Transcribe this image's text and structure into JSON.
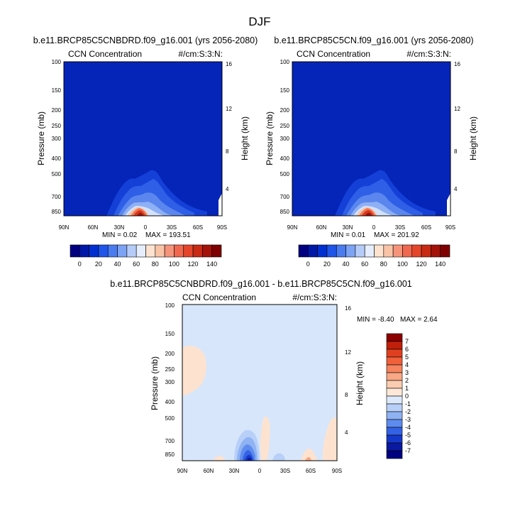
{
  "figure_title": "DJF",
  "chart_data": [
    {
      "type": "heatmap",
      "title": "b.e11.BRCP85C5CNBDRD.f09_g16.001 (yrs 2056-2080)",
      "left_label": "CCN Concentration",
      "right_label": "#/cm:S:3:N:",
      "xlabel": "",
      "ylabel": "Pressure (mb)",
      "y2label": "Height (km)",
      "x_ticks": [
        "90N",
        "60N",
        "30N",
        "0",
        "30S",
        "60S",
        "90S"
      ],
      "y_ticks": [
        "100",
        "150",
        "200",
        "250",
        "300",
        "400",
        "500",
        "700",
        "850"
      ],
      "y2_ticks": [
        "16",
        "12",
        "8",
        "4"
      ],
      "min_text": "MIN =   0.02",
      "max_text": "MAX = 193.51",
      "colorbar_labels": [
        "0",
        "20",
        "40",
        "60",
        "80",
        "100",
        "120",
        "140"
      ],
      "colorbar_colors": [
        "#000080",
        "#0018a8",
        "#0030d0",
        "#1f55e8",
        "#4a7cf0",
        "#7da3f5",
        "#b5ccf8",
        "#e6eefd",
        "#fde3cf",
        "#f9c3a6",
        "#f5947a",
        "#f0684f",
        "#e5462b",
        "#c82a14",
        "#a41208",
        "#7e0000"
      ],
      "background_color": "#0524b8",
      "hotspot_location": "near equator at the surface",
      "hotspot_peak": 193.51
    },
    {
      "type": "heatmap",
      "title": "b.e11.BRCP85C5CN.f09_g16.001 (yrs 2056-2080)",
      "left_label": "CCN Concentration",
      "right_label": "#/cm:S:3:N:",
      "xlabel": "",
      "ylabel": "Pressure (mb)",
      "y2label": "Height (km)",
      "x_ticks": [
        "90N",
        "60N",
        "30N",
        "0",
        "30S",
        "60S",
        "90S"
      ],
      "y_ticks": [
        "100",
        "150",
        "200",
        "250",
        "300",
        "400",
        "500",
        "700",
        "850"
      ],
      "y2_ticks": [
        "16",
        "12",
        "8",
        "4"
      ],
      "min_text": "MIN =   0.01",
      "max_text": "MAX = 201.92",
      "colorbar_labels": [
        "0",
        "20",
        "40",
        "60",
        "80",
        "100",
        "120",
        "140"
      ],
      "colorbar_colors": [
        "#000080",
        "#0018a8",
        "#0030d0",
        "#1f55e8",
        "#4a7cf0",
        "#7da3f5",
        "#b5ccf8",
        "#e6eefd",
        "#fde3cf",
        "#f9c3a6",
        "#f5947a",
        "#f0684f",
        "#e5462b",
        "#c82a14",
        "#a41208",
        "#7e0000"
      ],
      "background_color": "#0524b8",
      "hotspot_location": "near equator at the surface",
      "hotspot_peak": 201.92
    },
    {
      "type": "heatmap",
      "title": "b.e11.BRCP85C5CNBDRD.f09_g16.001 - b.e11.BRCP85C5CN.f09_g16.001",
      "left_label": "CCN Concentration",
      "right_label": "#/cm:S:3:N:",
      "xlabel": "",
      "ylabel": "Pressure (mb)",
      "y2label": "Height (km)",
      "x_ticks": [
        "90N",
        "60N",
        "30N",
        "0",
        "30S",
        "60S",
        "90S"
      ],
      "y_ticks": [
        "100",
        "150",
        "200",
        "250",
        "300",
        "400",
        "500",
        "700",
        "850"
      ],
      "y2_ticks": [
        "16",
        "12",
        "8",
        "4"
      ],
      "min_text": "MIN =  -8.40",
      "max_text": "MAX =   2.64",
      "colorbar_labels": [
        "7",
        "6",
        "5",
        "4",
        "3",
        "2",
        "1",
        "0",
        "-1",
        "-2",
        "-3",
        "-4",
        "-5",
        "-6",
        "-7"
      ],
      "colorbar_colors": [
        "#8b0000",
        "#c0200a",
        "#e0401f",
        "#f0603b",
        "#f5845f",
        "#f8a885",
        "#fbcdb0",
        "#fde8d8",
        "#dce9fb",
        "#b8d0f8",
        "#8fb2f3",
        "#5e8cee",
        "#3462e4",
        "#1638c8",
        "#0a1aa0",
        "#000080"
      ],
      "background_color": "#d7e6fa"
    }
  ]
}
